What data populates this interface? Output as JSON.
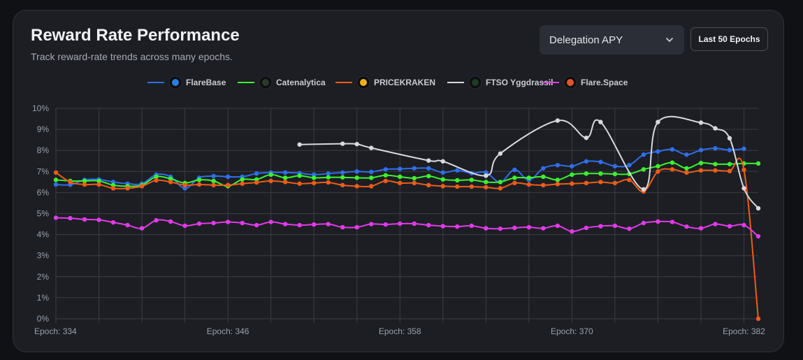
{
  "header": {
    "title": "Reward Rate Performance",
    "subtitle": "Track reward-rate trends across many epochs."
  },
  "controls": {
    "metric_select": {
      "value": "Delegation APY"
    },
    "range_button": "Last 50 Epochs"
  },
  "chart_data": {
    "type": "line",
    "y_unit": "%",
    "ylim": [
      0,
      10
    ],
    "y_ticks": [
      "0%",
      "1%",
      "2%",
      "3%",
      "4%",
      "5%",
      "6%",
      "7%",
      "8%",
      "9%",
      "10%"
    ],
    "x_tick_labels": [
      "Epoch: 334",
      "Epoch: 346",
      "Epoch: 358",
      "Epoch: 370",
      "Epoch: 382"
    ],
    "x_tick_epochs": [
      334,
      346,
      358,
      370,
      382
    ],
    "grid": true,
    "legend_position": "top-center",
    "series": [
      {
        "name": "FlareBase",
        "color": "#2f6fea",
        "icon": "flarebase-logo",
        "points": [
          [
            334,
            6.38
          ],
          [
            335,
            6.37
          ],
          [
            336,
            6.6
          ],
          [
            337,
            6.62
          ],
          [
            338,
            6.5
          ],
          [
            339,
            6.42
          ],
          [
            340,
            6.42
          ],
          [
            341,
            6.85
          ],
          [
            342,
            6.75
          ],
          [
            343,
            6.2
          ],
          [
            344,
            6.7
          ],
          [
            345,
            6.78
          ],
          [
            346,
            6.75
          ],
          [
            347,
            6.75
          ],
          [
            348,
            6.9
          ],
          [
            349,
            6.95
          ],
          [
            350,
            6.95
          ],
          [
            351,
            6.92
          ],
          [
            352,
            6.85
          ],
          [
            353,
            6.9
          ],
          [
            354,
            6.95
          ],
          [
            355,
            7.0
          ],
          [
            356,
            6.98
          ],
          [
            357,
            7.1
          ],
          [
            358,
            7.12
          ],
          [
            359,
            7.15
          ],
          [
            360,
            7.15
          ],
          [
            361,
            6.95
          ],
          [
            362,
            7.05
          ],
          [
            363,
            6.92
          ],
          [
            364,
            6.95
          ],
          [
            365,
            6.5
          ],
          [
            366,
            7.08
          ],
          [
            367,
            6.6
          ],
          [
            368,
            7.15
          ],
          [
            369,
            7.3
          ],
          [
            370,
            7.25
          ],
          [
            371,
            7.48
          ],
          [
            372,
            7.45
          ],
          [
            373,
            7.25
          ],
          [
            374,
            7.3
          ],
          [
            375,
            7.8
          ],
          [
            376,
            7.95
          ],
          [
            377,
            8.05
          ],
          [
            378,
            7.8
          ],
          [
            379,
            8.02
          ],
          [
            380,
            8.1
          ],
          [
            381,
            8.02
          ],
          [
            382,
            8.08
          ]
        ]
      },
      {
        "name": "Catenalytica",
        "color": "#3cf22e",
        "icon": "catenalytica-logo",
        "points": [
          [
            334,
            6.6
          ],
          [
            335,
            6.55
          ],
          [
            336,
            6.55
          ],
          [
            337,
            6.55
          ],
          [
            338,
            6.35
          ],
          [
            339,
            6.3
          ],
          [
            340,
            6.35
          ],
          [
            341,
            6.75
          ],
          [
            342,
            6.65
          ],
          [
            343,
            6.45
          ],
          [
            344,
            6.6
          ],
          [
            345,
            6.55
          ],
          [
            346,
            6.3
          ],
          [
            347,
            6.62
          ],
          [
            348,
            6.62
          ],
          [
            349,
            6.85
          ],
          [
            350,
            6.7
          ],
          [
            351,
            6.8
          ],
          [
            352,
            6.7
          ],
          [
            353,
            6.72
          ],
          [
            354,
            6.72
          ],
          [
            355,
            6.7
          ],
          [
            356,
            6.7
          ],
          [
            357,
            6.82
          ],
          [
            358,
            6.75
          ],
          [
            359,
            6.68
          ],
          [
            360,
            6.78
          ],
          [
            361,
            6.62
          ],
          [
            362,
            6.58
          ],
          [
            363,
            6.6
          ],
          [
            364,
            6.5
          ],
          [
            365,
            6.5
          ],
          [
            366,
            6.7
          ],
          [
            367,
            6.7
          ],
          [
            368,
            6.75
          ],
          [
            369,
            6.6
          ],
          [
            370,
            6.85
          ],
          [
            371,
            6.9
          ],
          [
            372,
            6.9
          ],
          [
            373,
            6.88
          ],
          [
            374,
            6.88
          ],
          [
            375,
            7.1
          ],
          [
            376,
            7.25
          ],
          [
            377,
            7.42
          ],
          [
            378,
            7.15
          ],
          [
            379,
            7.4
          ],
          [
            380,
            7.35
          ],
          [
            381,
            7.35
          ],
          [
            382,
            7.38
          ],
          [
            383,
            7.38
          ]
        ]
      },
      {
        "name": "PRICEKRAKEN",
        "color": "#ee5c16",
        "icon": "pricekraken-logo",
        "points": [
          [
            334,
            6.95
          ],
          [
            335,
            6.5
          ],
          [
            336,
            6.38
          ],
          [
            337,
            6.38
          ],
          [
            338,
            6.2
          ],
          [
            339,
            6.2
          ],
          [
            340,
            6.3
          ],
          [
            341,
            6.58
          ],
          [
            342,
            6.5
          ],
          [
            343,
            6.35
          ],
          [
            344,
            6.38
          ],
          [
            345,
            6.35
          ],
          [
            346,
            6.35
          ],
          [
            347,
            6.42
          ],
          [
            348,
            6.48
          ],
          [
            349,
            6.55
          ],
          [
            350,
            6.5
          ],
          [
            351,
            6.42
          ],
          [
            352,
            6.45
          ],
          [
            353,
            6.48
          ],
          [
            354,
            6.35
          ],
          [
            355,
            6.3
          ],
          [
            356,
            6.3
          ],
          [
            357,
            6.55
          ],
          [
            358,
            6.45
          ],
          [
            359,
            6.45
          ],
          [
            360,
            6.35
          ],
          [
            361,
            6.3
          ],
          [
            362,
            6.28
          ],
          [
            363,
            6.28
          ],
          [
            364,
            6.25
          ],
          [
            365,
            6.2
          ],
          [
            366,
            6.45
          ],
          [
            367,
            6.38
          ],
          [
            368,
            6.35
          ],
          [
            369,
            6.4
          ],
          [
            370,
            6.42
          ],
          [
            371,
            6.45
          ],
          [
            372,
            6.5
          ],
          [
            373,
            6.45
          ],
          [
            374,
            6.6
          ],
          [
            375,
            6.05
          ],
          [
            376,
            7.0
          ],
          [
            377,
            7.1
          ],
          [
            378,
            6.95
          ],
          [
            379,
            7.05
          ],
          [
            380,
            7.05
          ],
          [
            381,
            7.02
          ],
          [
            382,
            7.08
          ],
          [
            383,
            0.0
          ]
        ]
      },
      {
        "name": "FTSO Yggdrassil",
        "color": "#d7d9de",
        "icon": "yggdrassil-logo",
        "points": [
          [
            351,
            8.28
          ],
          [
            354,
            8.32
          ],
          [
            355,
            8.3
          ],
          [
            356,
            8.12
          ],
          [
            360,
            7.52
          ],
          [
            361,
            7.48
          ],
          [
            364,
            6.8
          ],
          [
            365,
            7.85
          ],
          [
            369,
            9.42
          ],
          [
            371,
            8.6
          ],
          [
            372,
            9.35
          ],
          [
            375,
            6.15
          ],
          [
            376,
            9.35
          ],
          [
            379,
            9.32
          ],
          [
            380,
            9.05
          ],
          [
            381,
            8.58
          ],
          [
            382,
            6.2
          ],
          [
            383,
            5.25
          ]
        ]
      },
      {
        "name": "Flare.Space",
        "color": "#e23ae8",
        "icon": "flarespace-logo",
        "points": [
          [
            334,
            4.8
          ],
          [
            335,
            4.78
          ],
          [
            336,
            4.72
          ],
          [
            337,
            4.7
          ],
          [
            338,
            4.58
          ],
          [
            339,
            4.45
          ],
          [
            340,
            4.3
          ],
          [
            341,
            4.68
          ],
          [
            342,
            4.62
          ],
          [
            343,
            4.42
          ],
          [
            344,
            4.52
          ],
          [
            345,
            4.55
          ],
          [
            346,
            4.6
          ],
          [
            347,
            4.55
          ],
          [
            348,
            4.45
          ],
          [
            349,
            4.6
          ],
          [
            350,
            4.5
          ],
          [
            351,
            4.45
          ],
          [
            352,
            4.48
          ],
          [
            353,
            4.5
          ],
          [
            354,
            4.35
          ],
          [
            355,
            4.35
          ],
          [
            356,
            4.5
          ],
          [
            357,
            4.48
          ],
          [
            358,
            4.52
          ],
          [
            359,
            4.52
          ],
          [
            360,
            4.45
          ],
          [
            361,
            4.4
          ],
          [
            362,
            4.38
          ],
          [
            363,
            4.42
          ],
          [
            364,
            4.3
          ],
          [
            365,
            4.28
          ],
          [
            366,
            4.32
          ],
          [
            367,
            4.35
          ],
          [
            368,
            4.3
          ],
          [
            369,
            4.42
          ],
          [
            370,
            4.15
          ],
          [
            371,
            4.32
          ],
          [
            372,
            4.4
          ],
          [
            373,
            4.42
          ],
          [
            374,
            4.28
          ],
          [
            375,
            4.55
          ],
          [
            376,
            4.62
          ],
          [
            377,
            4.6
          ],
          [
            378,
            4.38
          ],
          [
            379,
            4.3
          ],
          [
            380,
            4.5
          ],
          [
            381,
            4.4
          ],
          [
            382,
            4.45
          ],
          [
            383,
            3.92
          ]
        ]
      }
    ]
  }
}
